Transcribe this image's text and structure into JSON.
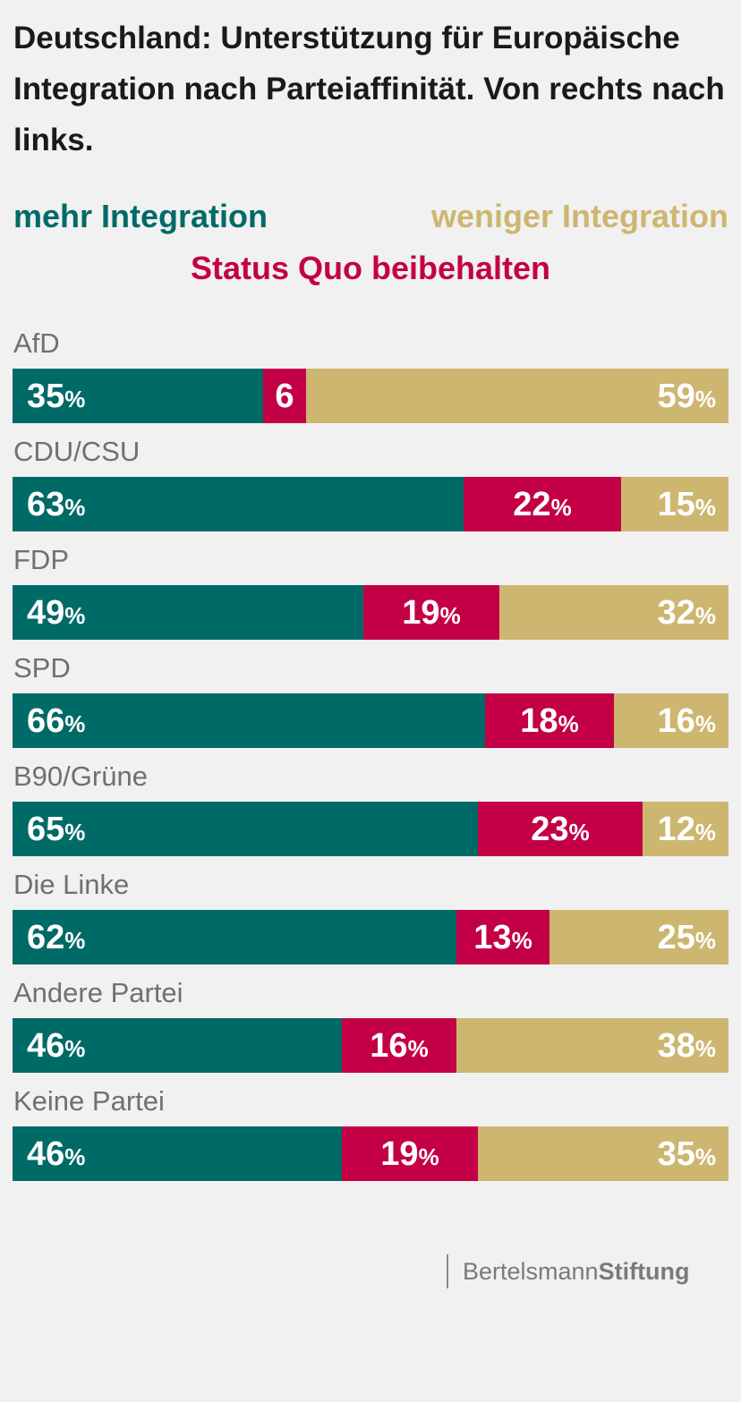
{
  "title": "Deutschland: Unterstützung für Europäische Integration nach Parteiaffinität. Von rechts nach links.",
  "colors": {
    "mehr": "#006a67",
    "status_quo": "#c30046",
    "weniger": "#cdb670",
    "background": "#f1f1f1"
  },
  "legend": {
    "mehr": "mehr Integration",
    "weniger": "weniger Integration",
    "status_quo": "Status Quo beibehalten"
  },
  "brand": {
    "part1": "Bertelsmann",
    "part2": "Stiftung"
  },
  "chart_data": {
    "type": "bar",
    "stacked": true,
    "orientation": "horizontal",
    "unit": "%",
    "categories": [
      "AfD",
      "CDU/CSU",
      "FDP",
      "SPD",
      "B90/Grüne",
      "Die Linke",
      "Andere Partei",
      "Keine Partei"
    ],
    "series": [
      {
        "name": "mehr Integration",
        "key": "mehr",
        "values": [
          35,
          63,
          49,
          66,
          65,
          62,
          46,
          46
        ]
      },
      {
        "name": "Status Quo beibehalten",
        "key": "status_quo",
        "values": [
          6,
          22,
          19,
          18,
          23,
          13,
          16,
          19
        ]
      },
      {
        "name": "weniger Integration",
        "key": "weniger",
        "values": [
          59,
          15,
          32,
          16,
          12,
          25,
          38,
          35
        ]
      }
    ],
    "value_labels": [
      [
        "35",
        "6",
        "59"
      ],
      [
        "63",
        "22",
        "15"
      ],
      [
        "49",
        "19",
        "32"
      ],
      [
        "66",
        "18",
        "16"
      ],
      [
        "65",
        "23",
        "12"
      ],
      [
        "62",
        "13",
        "25"
      ],
      [
        "46",
        "16",
        "38"
      ],
      [
        "46",
        "19",
        "35"
      ]
    ],
    "show_percent_sign": [
      [
        true,
        false,
        true
      ],
      [
        true,
        true,
        true
      ],
      [
        true,
        true,
        true
      ],
      [
        true,
        true,
        true
      ],
      [
        true,
        true,
        true
      ],
      [
        true,
        true,
        true
      ],
      [
        true,
        true,
        true
      ],
      [
        true,
        true,
        true
      ]
    ],
    "xlim": [
      0,
      100
    ]
  }
}
